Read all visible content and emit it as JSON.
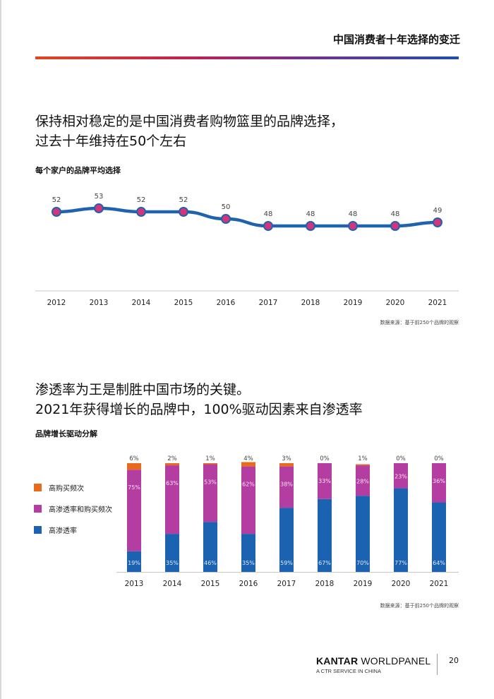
{
  "header": {
    "title": "中国消费者十年选择的变迁"
  },
  "section1": {
    "headline_line1": "保持相对稳定的是中国消费者购物篮里的品牌选择，",
    "headline_line2": "过去十年维持在50个左右",
    "subtitle": "每个家户的品牌平均选择",
    "source": "数据来源：基于前250个品牌的观察"
  },
  "section2": {
    "headline_line1": "渗透率为王是制胜中国市场的关键。",
    "headline_line2": "2021年获得增长的品牌中，100%驱动因素来自渗透率",
    "subtitle": "品牌增长驱动分解",
    "source": "数据来源：基于前250个品牌的观察"
  },
  "chart_data": [
    {
      "type": "line",
      "title": "每个家户的品牌平均选择",
      "x": [
        "2012",
        "2013",
        "2014",
        "2015",
        "2016",
        "2017",
        "2018",
        "2019",
        "2020",
        "2021"
      ],
      "series": [
        {
          "values": [
            52,
            53,
            52,
            52,
            50,
            48,
            48,
            48,
            48,
            49
          ]
        }
      ],
      "ylim": [
        30,
        56
      ],
      "grid": false,
      "colors": {
        "line": "#1f63ae",
        "marker_fill": "#d6337a",
        "marker_stroke": "#1f63ae",
        "axis": "#c8c8c8"
      }
    },
    {
      "type": "bar",
      "stacked": true,
      "title": "品牌增长驱动分解",
      "categories": [
        "2013",
        "2014",
        "2015",
        "2016",
        "2017",
        "2018",
        "2019",
        "2020",
        "2021"
      ],
      "series": [
        {
          "name": "高渗透率",
          "values": [
            19,
            35,
            46,
            35,
            59,
            67,
            70,
            77,
            64
          ],
          "labels": [
            "19%",
            "35%",
            "46%",
            "35%",
            "59%",
            "67%",
            "70%",
            "77%",
            "64%"
          ],
          "color": "#1b62b0"
        },
        {
          "name": "高渗透率和购买频次",
          "values": [
            75,
            63,
            53,
            62,
            38,
            33,
            28,
            23,
            36
          ],
          "labels": [
            "75%",
            "63%",
            "53%",
            "62%",
            "38%",
            "33%",
            "28%",
            "23%",
            "36%"
          ],
          "color": "#b43da2"
        },
        {
          "name": "高购买频次",
          "values": [
            6,
            2,
            1,
            4,
            3,
            0,
            1,
            0,
            0
          ],
          "labels": [
            "6%",
            "2%",
            "1%",
            "4%",
            "3%",
            "0%",
            "1%",
            "0%",
            "0%"
          ],
          "color": "#e86a1c"
        }
      ],
      "ylim": [
        0,
        100
      ],
      "legend": "left",
      "legend_order": [
        "高购买频次",
        "高渗透率和购买频次",
        "高渗透率"
      ],
      "grid": false
    }
  ],
  "footer": {
    "brand_bold": "KANTAR",
    "brand_rest": " WORLDPANEL",
    "tagline": "A CTR SERVICE IN CHINA",
    "page_number": "20"
  }
}
